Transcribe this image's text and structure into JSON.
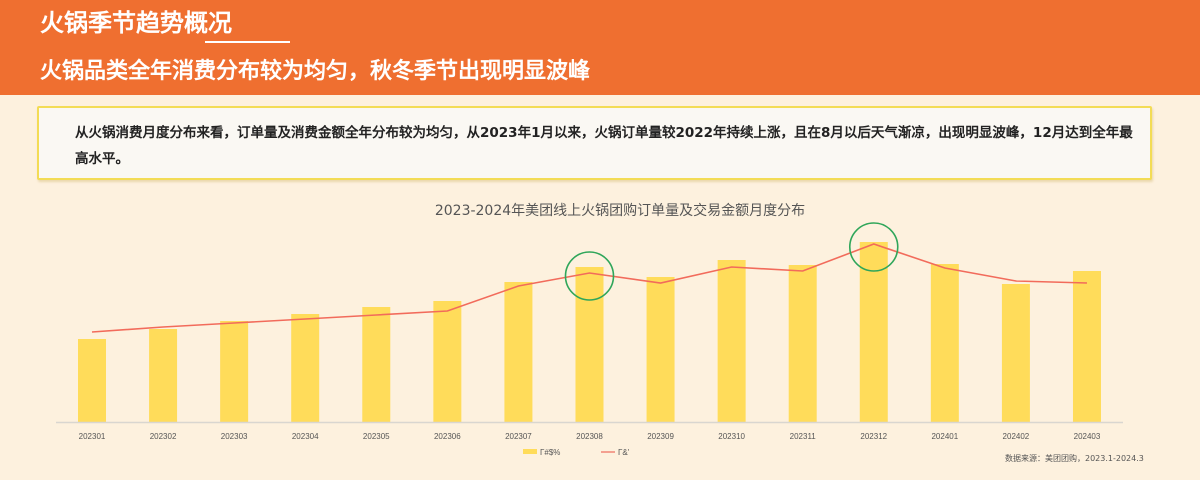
{
  "header": {
    "title": "火锅季节趋势概况",
    "subtitle": "火锅品类全年消费分布较为均匀，秋冬季节出现明显波峰",
    "background_color": "#ef6f30"
  },
  "summary": {
    "text": "从火锅消费月度分布来看，订单量及消费金额全年分布较为均匀，从2023年1月以来，火锅订单量较2022年持续上涨，且在8月以后天气渐凉，出现明显波峰，12月达到全年最高水平。"
  },
  "chart_data": {
    "type": "bar",
    "title": "2023-2024年美团线上火锅团购订单量及交易金额月度分布",
    "xlabel": "",
    "ylabel": "",
    "grid": false,
    "legend_position": "bottom",
    "categories": [
      "202301",
      "202302",
      "202303",
      "202304",
      "202305",
      "202306",
      "202307",
      "202308",
      "202309",
      "202310",
      "202311",
      "202312",
      "202401",
      "202402",
      "202403"
    ],
    "series": [
      {
        "name": "Γ#$%",
        "type": "bar",
        "color": "#ffdc5a",
        "values": [
          83,
          93,
          101,
          108,
          115,
          121,
          140,
          155,
          145,
          162,
          157,
          180,
          158,
          138,
          151
        ]
      },
      {
        "name": "Γ&'",
        "type": "line",
        "color": "#f26b5b",
        "values": [
          90,
          95,
          99,
          103,
          107,
          111,
          136,
          149,
          139,
          155,
          151,
          178,
          154,
          141,
          139
        ]
      }
    ],
    "annotations": [
      {
        "type": "circle",
        "category": "202308",
        "color": "#2fa65a"
      },
      {
        "type": "circle",
        "category": "202312",
        "color": "#2fa65a"
      }
    ],
    "ylim": [
      0,
      200
    ],
    "value_note": "relative values, no y-axis shown"
  },
  "footer": {
    "source": "数据来源：美团团购，2023.1-2024.3"
  }
}
